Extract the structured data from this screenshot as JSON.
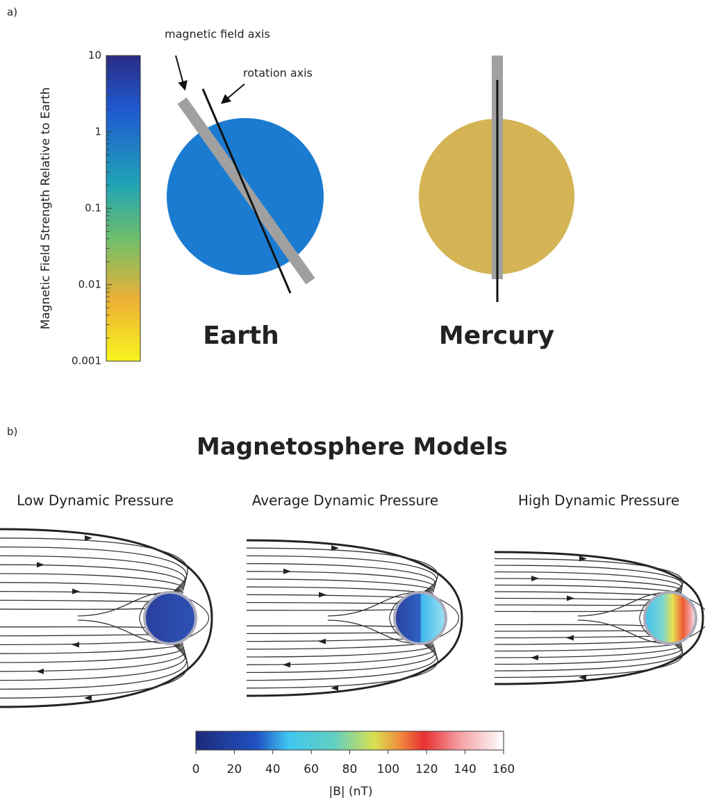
{
  "panel_a": {
    "label": "a)",
    "colorbar": {
      "label": "Magnetic Field Strength Relative to Earth",
      "scale": "log",
      "lim": [
        0.001,
        10
      ],
      "ticks": [
        10,
        1,
        0.1,
        0.01,
        0.001
      ]
    },
    "annotations": [
      "magnetic field axis",
      "rotation axis"
    ],
    "planets": [
      "Earth",
      "Mercury"
    ]
  },
  "panel_b": {
    "label": "b)",
    "title": "Magnetosphere Models",
    "models": [
      "Low Dynamic Pressure",
      "Average Dynamic Pressure",
      "High Dynamic Pressure"
    ],
    "colorbar": {
      "label": "|B| (nT)",
      "lim": [
        0,
        160
      ],
      "ticks": [
        0,
        20,
        40,
        60,
        80,
        100,
        120,
        140,
        160
      ]
    }
  }
}
